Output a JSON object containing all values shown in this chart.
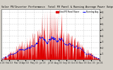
{
  "title": "Solar PV/Inverter Performance  Total PV Panel & Running Average Power Output",
  "bg_color": "#d4d0c8",
  "plot_bg": "#ffffff",
  "bar_color": "#dd0000",
  "avg_color": "#0000ee",
  "ylim": [
    0,
    850
  ],
  "yticks": [
    100,
    200,
    300,
    400,
    500,
    600,
    700,
    800
  ],
  "ytick_labels": [
    "1",
    "2",
    "3",
    "4",
    "5",
    "6",
    "7",
    "8"
  ],
  "n_points": 520,
  "seed": 12
}
